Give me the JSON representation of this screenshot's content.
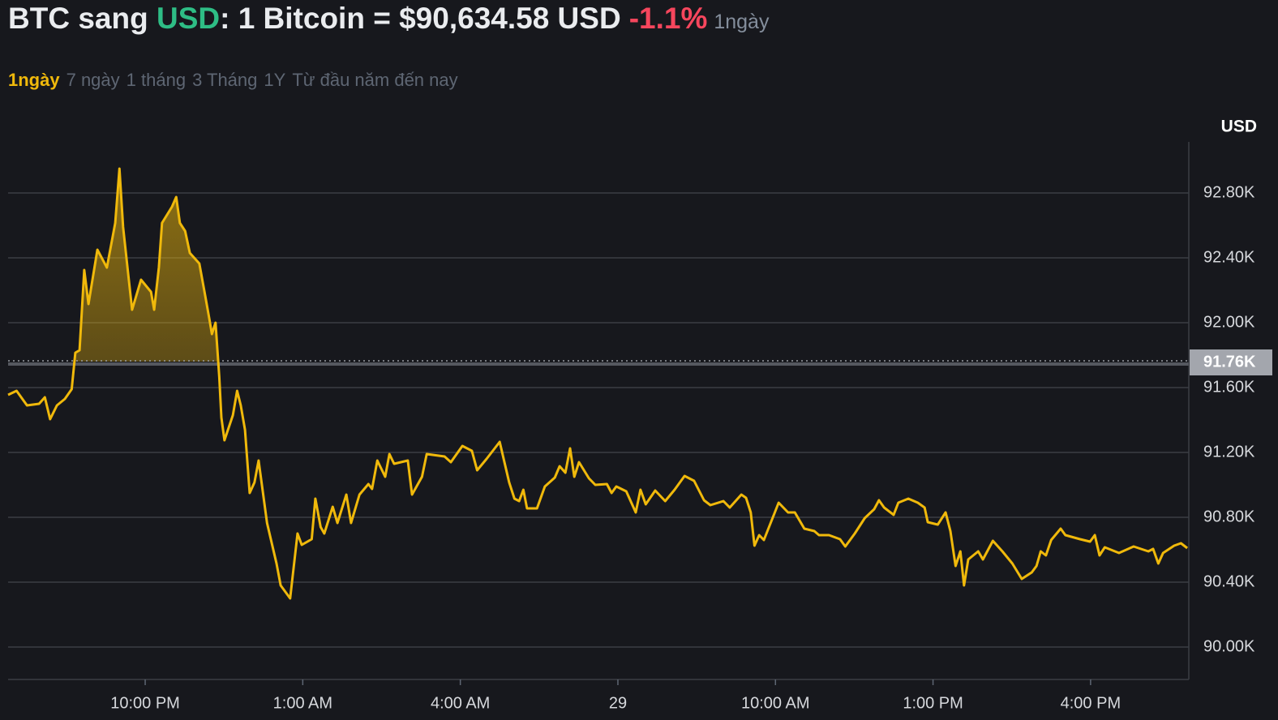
{
  "header": {
    "base": "BTC sang",
    "quote": "USD",
    "rate": ": 1 Bitcoin = $90,634.58 USD",
    "change": "-1.1%",
    "period": "1ngày"
  },
  "tabs": {
    "items": [
      "1ngày",
      "7 ngày",
      "1 tháng",
      "3 Tháng",
      "1Y",
      "Từ đầu năm đến nay"
    ],
    "active": 0
  },
  "chart_data": {
    "type": "line",
    "y_label": "USD",
    "color": "#f0b90b",
    "grid": true,
    "reference": {
      "value": 91760,
      "label": "91.76K"
    },
    "xlim": [
      19.39,
      41.87
    ],
    "ylim": [
      89800,
      93115
    ],
    "xticks": [
      {
        "value": 22,
        "label": "10:00 PM"
      },
      {
        "value": 25,
        "label": "1:00 AM"
      },
      {
        "value": 28,
        "label": "4:00 AM"
      },
      {
        "value": 31,
        "label": "29"
      },
      {
        "value": 34,
        "label": "10:00 AM"
      },
      {
        "value": 37,
        "label": "1:00 PM"
      },
      {
        "value": 40,
        "label": "4:00 PM"
      }
    ],
    "yticks": [
      {
        "value": 90000,
        "label": "90.00K"
      },
      {
        "value": 90400,
        "label": "90.40K"
      },
      {
        "value": 90800,
        "label": "90.80K"
      },
      {
        "value": 91200,
        "label": "91.20K"
      },
      {
        "value": 91600,
        "label": "91.60K"
      },
      {
        "value": 92000,
        "label": "92.00K"
      },
      {
        "value": 92400,
        "label": "92.40K"
      },
      {
        "value": 92800,
        "label": "92.80K"
      }
    ],
    "x": [
      19.39,
      19.55,
      19.75,
      19.98,
      20.09,
      20.19,
      20.32,
      20.47,
      20.6,
      20.67,
      20.75,
      20.84,
      20.92,
      21.09,
      21.27,
      21.43,
      21.51,
      21.58,
      21.68,
      21.75,
      21.92,
      22.11,
      22.17,
      22.26,
      22.32,
      22.51,
      22.59,
      22.66,
      22.76,
      22.85,
      23.03,
      23.13,
      23.22,
      23.27,
      23.34,
      23.41,
      23.45,
      23.51,
      23.67,
      23.75,
      23.82,
      23.9,
      23.99,
      24.08,
      24.16,
      24.32,
      24.5,
      24.58,
      24.76,
      24.9,
      24.98,
      25.17,
      25.24,
      25.34,
      25.41,
      25.57,
      25.66,
      25.83,
      25.92,
      26.08,
      26.25,
      26.32,
      26.42,
      26.57,
      26.65,
      26.74,
      27.0,
      27.08,
      27.27,
      27.36,
      27.7,
      27.82,
      28.04,
      28.22,
      28.32,
      28.5,
      28.75,
      28.93,
      29.03,
      29.12,
      29.2,
      29.27,
      29.46,
      29.61,
      29.8,
      29.89,
      30.0,
      30.09,
      30.17,
      30.26,
      30.45,
      30.57,
      30.79,
      30.88,
      30.97,
      31.16,
      31.34,
      31.43,
      31.53,
      31.71,
      31.9,
      32.08,
      32.27,
      32.45,
      32.64,
      32.76,
      33.01,
      33.13,
      33.35,
      33.44,
      33.53,
      33.6,
      33.69,
      33.78,
      33.97,
      34.06,
      34.24,
      34.37,
      34.55,
      34.74,
      34.83,
      35.02,
      35.23,
      35.33,
      35.51,
      35.7,
      35.88,
      35.97,
      36.07,
      36.25,
      36.34,
      36.53,
      36.71,
      36.84,
      36.9,
      37.09,
      37.24,
      37.33,
      37.43,
      37.52,
      37.59,
      37.67,
      37.86,
      37.95,
      38.14,
      38.32,
      38.51,
      38.69,
      38.88,
      38.97,
      39.05,
      39.15,
      39.25,
      39.43,
      39.52,
      39.8,
      39.99,
      40.08,
      40.17,
      40.27,
      40.54,
      40.82,
      41.1,
      41.19,
      41.29,
      41.38,
      41.59,
      41.72,
      41.84
    ],
    "values": [
      91555,
      91580,
      91490,
      91500,
      91540,
      91405,
      91490,
      91530,
      91590,
      91815,
      91830,
      92325,
      92115,
      92450,
      92340,
      92615,
      92950,
      92590,
      92290,
      92080,
      92265,
      92190,
      92080,
      92340,
      92615,
      92715,
      92775,
      92615,
      92565,
      92430,
      92365,
      92190,
      92025,
      91930,
      92000,
      91665,
      91415,
      91275,
      91430,
      91580,
      91490,
      91340,
      90950,
      91015,
      91150,
      90765,
      90515,
      90380,
      90300,
      90700,
      90630,
      90665,
      90915,
      90740,
      90700,
      90865,
      90765,
      90940,
      90765,
      90940,
      91005,
      90975,
      91150,
      91050,
      91190,
      91130,
      91150,
      90940,
      91050,
      91190,
      91175,
      91140,
      91240,
      91210,
      91090,
      91160,
      91265,
      91015,
      90915,
      90900,
      90970,
      90855,
      90855,
      90990,
      91045,
      91115,
      91075,
      91225,
      91050,
      91140,
      91040,
      91000,
      91005,
      90950,
      90990,
      90960,
      90830,
      90970,
      90880,
      90965,
      90900,
      90970,
      91055,
      91025,
      90905,
      90875,
      90900,
      90860,
      90940,
      90920,
      90830,
      90625,
      90690,
      90660,
      90815,
      90890,
      90830,
      90830,
      90730,
      90715,
      90690,
      90690,
      90665,
      90620,
      90700,
      90795,
      90850,
      90905,
      90860,
      90815,
      90890,
      90915,
      90890,
      90860,
      90770,
      90755,
      90830,
      90715,
      90500,
      90590,
      90380,
      90540,
      90590,
      90540,
      90655,
      90590,
      90515,
      90420,
      90460,
      90500,
      90590,
      90565,
      90660,
      90730,
      90690,
      90665,
      90650,
      90690,
      90565,
      90615,
      90580,
      90620,
      90590,
      90605,
      90515,
      90580,
      90625,
      90640,
      90610
    ]
  }
}
